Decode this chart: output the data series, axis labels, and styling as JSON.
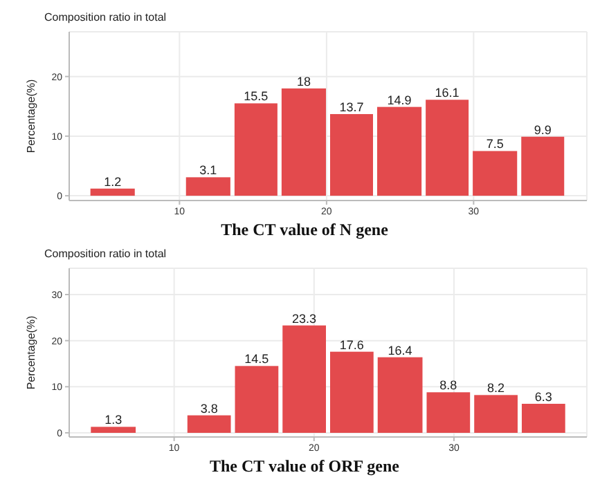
{
  "chart_data": [
    {
      "type": "histogram",
      "title": "Composition ratio in total",
      "xlabel": "The CT value of N gene",
      "ylabel": "Percentage(%)",
      "bins": [
        3.8,
        7.1,
        10.3,
        13.6,
        16.8,
        20.1,
        23.3,
        26.6,
        29.8,
        33.1,
        36.3
      ],
      "values": [
        1.2,
        0,
        3.1,
        15.5,
        18,
        13.7,
        14.9,
        16.1,
        7.5,
        9.9
      ],
      "value_labels": [
        "1.2",
        null,
        "3.1",
        "15.5",
        "18",
        "13.7",
        "14.9",
        "16.1",
        "7.5",
        "9.9"
      ],
      "color": "#e34a4d",
      "xlim": [
        2.5,
        37.7
      ],
      "xticks": [
        10,
        20,
        30
      ],
      "ylim": [
        -0.8,
        27.5
      ],
      "yticks": [
        0,
        10,
        20
      ],
      "grid": true
    },
    {
      "type": "histogram",
      "title": "Composition ratio in total",
      "xlabel": "The CT value of ORF gene",
      "ylabel": "Percentage(%)",
      "bins": [
        3.9,
        7.4,
        10.8,
        14.2,
        17.6,
        21.0,
        24.4,
        27.9,
        31.3,
        34.7,
        38.1
      ],
      "values": [
        1.3,
        0,
        3.8,
        14.5,
        23.3,
        17.6,
        16.4,
        8.8,
        8.2,
        6.3
      ],
      "value_labels": [
        "1.3",
        null,
        "3.8",
        "14.5",
        "23.3",
        "17.6",
        "16.4",
        "8.8",
        "8.2",
        "6.3"
      ],
      "color": "#e34a4d",
      "xlim": [
        2.5,
        39.5
      ],
      "xticks": [
        10,
        20,
        30
      ],
      "ylim": [
        -0.9,
        35.7
      ],
      "yticks": [
        0,
        10,
        20,
        30
      ],
      "grid": true
    }
  ]
}
